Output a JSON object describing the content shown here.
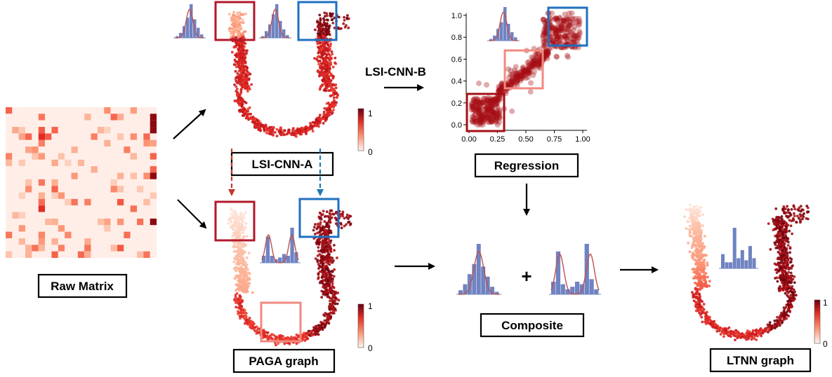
{
  "colors": {
    "dark_red": "#a50f15",
    "mid_red": "#ef3b2c",
    "light_red": "#fcbba1",
    "pale": "#fff5f0",
    "blue": "#1f77b4",
    "box_blue": "#1f6fbf",
    "hist_blue": "#7083c2",
    "curve": "#c0504d",
    "scatter": "#a50f15"
  },
  "labels": {
    "raw_matrix": "Raw Matrix",
    "lsi_cnn_a": "LSI-CNN-A",
    "lsi_cnn_b": "LSI-CNN-B",
    "regression": "Regression",
    "paga_graph": "PAGA graph",
    "composite": "Composite",
    "ltnn_graph": "LTNN graph",
    "plus": "+"
  },
  "colorbar": {
    "max_label": "1",
    "min_label": "0"
  },
  "regression_axes": {
    "x_ticks": [
      "0.00",
      "0.25",
      "0.50",
      "0.75",
      "1.00"
    ],
    "y_ticks": [
      "0.0",
      "0.2",
      "0.4",
      "0.6",
      "0.8",
      "1.0"
    ],
    "x_range": [
      0,
      1
    ],
    "y_range": [
      0,
      1
    ]
  }
}
